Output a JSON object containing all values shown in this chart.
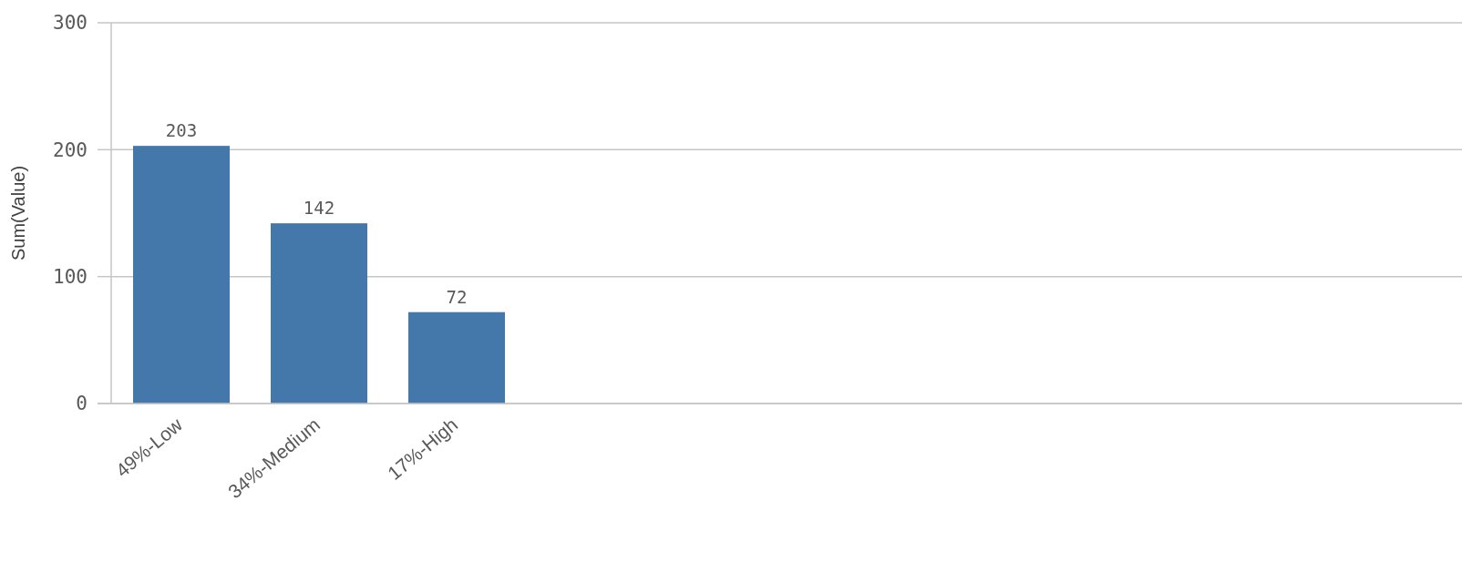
{
  "chart_data": {
    "type": "bar",
    "ylabel": "Sum(Value)",
    "categories": [
      "49%-Low",
      "34%-Medium",
      "17%-High"
    ],
    "values": [
      203,
      142,
      72
    ],
    "color": "#4477aa",
    "ylim": [
      0,
      300
    ],
    "yticks": [
      0,
      100,
      200,
      300
    ],
    "grid": "y",
    "data_labels": true
  }
}
